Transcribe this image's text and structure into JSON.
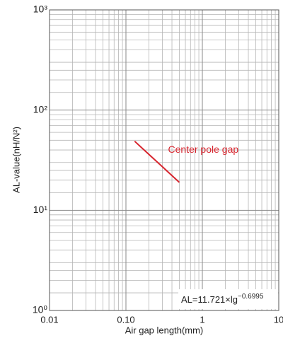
{
  "chart_data": {
    "type": "line",
    "xlabel": "Air gap length(mm)",
    "ylabel": "AL-value(nH/N²)",
    "xscale": "log",
    "yscale": "log",
    "grid": true,
    "minor_grid": true,
    "xlim": [
      0.01,
      10
    ],
    "ylim": [
      1,
      1000
    ],
    "xticks": [
      0.01,
      {
        "value": 0.1,
        "label": "0.10"
      },
      1,
      10
    ],
    "yticks": [
      {
        "value": 1,
        "label": "10⁰"
      },
      {
        "value": 10,
        "label": "10¹"
      },
      {
        "value": 100,
        "label": "10²"
      },
      {
        "value": 1000,
        "label": "10³"
      }
    ],
    "x": [
      0.13,
      0.2,
      0.3,
      0.4,
      0.5
    ],
    "series": [
      {
        "name": "Center pole gap",
        "color": "#d7262f",
        "values": [
          48.9,
          36.1,
          27.2,
          22.2,
          19.0
        ]
      }
    ],
    "formula": {
      "base": "AL=11.721×lg",
      "exponent": "−0.6995"
    }
  }
}
